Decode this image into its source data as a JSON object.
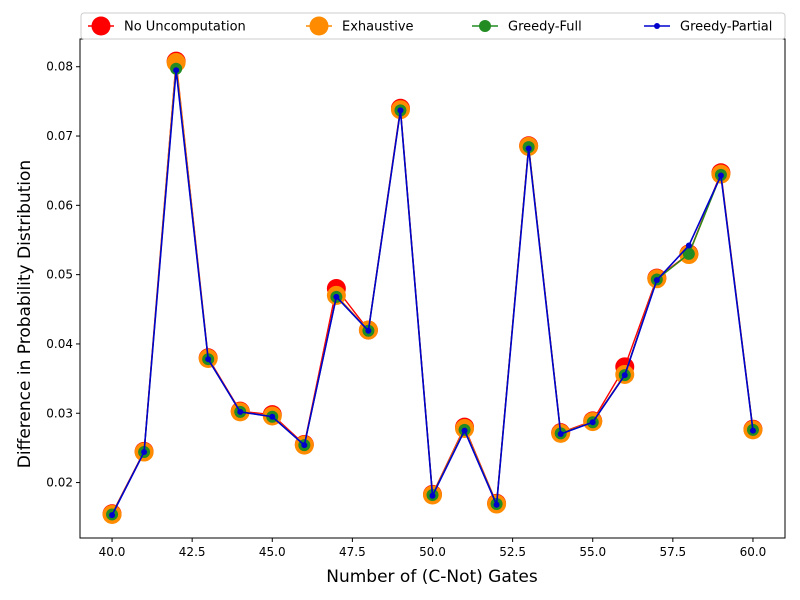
{
  "chart_data": {
    "type": "line",
    "title": "",
    "xlabel": "Number of (C-Not) Gates",
    "ylabel": "Difference in Probability Distribution",
    "xlim": [
      39,
      61
    ],
    "ylim": [
      0.012,
      0.084
    ],
    "xticks": [
      40.0,
      42.5,
      45.0,
      47.5,
      50.0,
      52.5,
      55.0,
      57.5,
      60.0
    ],
    "xtick_labels": [
      "40.0",
      "42.5",
      "45.0",
      "47.5",
      "50.0",
      "52.5",
      "55.0",
      "57.5",
      "60.0"
    ],
    "yticks": [
      0.02,
      0.03,
      0.04,
      0.05,
      0.06,
      0.07,
      0.08
    ],
    "ytick_labels": [
      "0.02",
      "0.03",
      "0.04",
      "0.05",
      "0.06",
      "0.07",
      "0.08"
    ],
    "grid": false,
    "legend_position": "top",
    "x": [
      40,
      41,
      42,
      43,
      44,
      45,
      46,
      47,
      48,
      49,
      50,
      51,
      52,
      53,
      54,
      55,
      56,
      57,
      58,
      59,
      60
    ],
    "series": [
      {
        "name": "No Uncomputation",
        "color": "#ff0000",
        "marker_size": "large",
        "values": [
          0.0155,
          0.0245,
          0.0808,
          0.038,
          0.0303,
          0.0298,
          0.0255,
          0.048,
          0.042,
          0.074,
          0.0183,
          0.028,
          0.017,
          0.0686,
          0.0272,
          0.0289,
          0.0367,
          0.0495,
          0.053,
          0.0647,
          0.0277
        ]
      },
      {
        "name": "Exhaustive",
        "color": "#ff8c00",
        "marker_size": "large",
        "values": [
          0.0154,
          0.0244,
          0.0806,
          0.0379,
          0.0302,
          0.0296,
          0.0254,
          0.047,
          0.042,
          0.0738,
          0.0182,
          0.0278,
          0.0169,
          0.0685,
          0.0271,
          0.0288,
          0.0356,
          0.0494,
          0.0529,
          0.0645,
          0.0276
        ]
      },
      {
        "name": "Greedy-Full",
        "color": "#228b22",
        "marker_size": "medium",
        "values": [
          0.0154,
          0.0244,
          0.0797,
          0.0378,
          0.0302,
          0.0295,
          0.0254,
          0.0468,
          0.0419,
          0.0737,
          0.0182,
          0.0276,
          0.0169,
          0.0684,
          0.0271,
          0.0287,
          0.0355,
          0.0493,
          0.053,
          0.0644,
          0.0276
        ]
      },
      {
        "name": "Greedy-Partial",
        "color": "#0000cd",
        "marker_size": "small",
        "values": [
          0.0153,
          0.0244,
          0.0795,
          0.0378,
          0.0302,
          0.0295,
          0.0254,
          0.0468,
          0.0419,
          0.0737,
          0.0181,
          0.0275,
          0.0168,
          0.0682,
          0.027,
          0.0287,
          0.0355,
          0.0492,
          0.0542,
          0.0643,
          0.0275
        ]
      }
    ]
  }
}
